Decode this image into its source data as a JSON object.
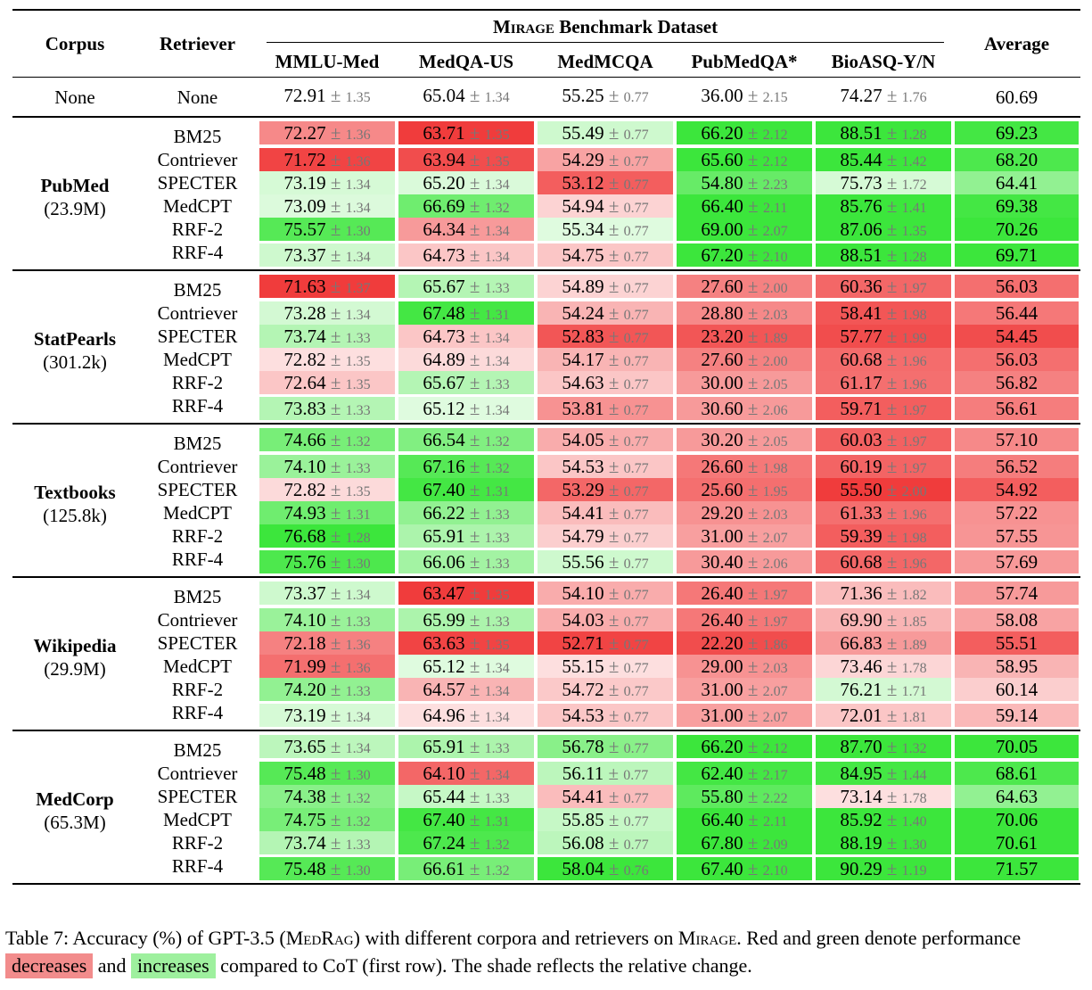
{
  "header": {
    "corpus": "Corpus",
    "retriever": "Retriever",
    "benchmark_prefix": "Mirage",
    "benchmark_suffix": "Benchmark Dataset",
    "datasets": [
      "MMLU-Med",
      "MedQA-US",
      "MedMCQA",
      "PubMedQA*",
      "BioASQ-Y/N"
    ],
    "average": "Average"
  },
  "pm": "±",
  "baseline": {
    "corpus": "None",
    "retriever": "None",
    "cells": [
      [
        "72.91",
        "1.35"
      ],
      [
        "65.04",
        "1.34"
      ],
      [
        "55.25",
        "0.77"
      ],
      [
        "36.00",
        "2.15"
      ],
      [
        "74.27",
        "1.76"
      ]
    ],
    "average": "60.69"
  },
  "groups": [
    {
      "name": "PubMed",
      "size": "(23.9M)",
      "rows": [
        {
          "r": "BM25",
          "c": [
            [
              "72.27",
              "1.36",
              -0.55
            ],
            [
              "63.71",
              "1.35",
              -1
            ],
            [
              "55.49",
              "0.77",
              0.15
            ],
            [
              "66.20",
              "2.12",
              1
            ],
            [
              "88.51",
              "1.28",
              1
            ]
          ],
          "avg": "69.23",
          "ac": 0.95
        },
        {
          "r": "Contriever",
          "c": [
            [
              "71.72",
              "1.36",
              -0.95
            ],
            [
              "63.94",
              "1.35",
              -0.9
            ],
            [
              "54.29",
              "0.77",
              -0.4
            ],
            [
              "65.60",
              "2.12",
              1
            ],
            [
              "85.44",
              "1.42",
              1
            ]
          ],
          "avg": "68.20",
          "ac": 0.9
        },
        {
          "r": "SPECTER",
          "c": [
            [
              "73.19",
              "1.34",
              0.1
            ],
            [
              "65.20",
              "1.34",
              0.08
            ],
            [
              "53.12",
              "0.77",
              -0.8
            ],
            [
              "54.80",
              "2.23",
              0.75
            ],
            [
              "75.73",
              "1.72",
              0.1
            ]
          ],
          "avg": "64.41",
          "ac": 0.5
        },
        {
          "r": "MedCPT",
          "c": [
            [
              "73.09",
              "1.34",
              0.07
            ],
            [
              "66.69",
              "1.32",
              0.7
            ],
            [
              "54.94",
              "0.77",
              -0.12
            ],
            [
              "66.40",
              "2.11",
              1
            ],
            [
              "85.76",
              "1.41",
              1
            ]
          ],
          "avg": "69.38",
          "ac": 0.95
        },
        {
          "r": "RRF-2",
          "c": [
            [
              "75.57",
              "1.30",
              0.85
            ],
            [
              "64.34",
              "1.34",
              -0.45
            ],
            [
              "55.34",
              "0.77",
              0.05
            ],
            [
              "69.00",
              "2.07",
              1
            ],
            [
              "87.06",
              "1.35",
              1
            ]
          ],
          "avg": "70.26",
          "ac": 1
        },
        {
          "r": "RRF-4",
          "c": [
            [
              "73.37",
              "1.34",
              0.15
            ],
            [
              "64.73",
              "1.34",
              -0.2
            ],
            [
              "54.75",
              "0.77",
              -0.2
            ],
            [
              "67.20",
              "2.10",
              1
            ],
            [
              "88.51",
              "1.28",
              1
            ]
          ],
          "avg": "69.71",
          "ac": 1
        }
      ]
    },
    {
      "name": "StatPearls",
      "size": "(301.2k)",
      "rows": [
        {
          "r": "BM25",
          "c": [
            [
              "71.63",
              "1.37",
              -1
            ],
            [
              "65.67",
              "1.33",
              0.3
            ],
            [
              "54.89",
              "0.77",
              -0.12
            ],
            [
              "27.60",
              "2.00",
              -0.6
            ],
            [
              "60.36",
              "1.97",
              -0.75
            ]
          ],
          "avg": "56.03",
          "ac": -0.7
        },
        {
          "r": "Contriever",
          "c": [
            [
              "73.28",
              "1.34",
              0.12
            ],
            [
              "67.48",
              "1.31",
              0.95
            ],
            [
              "54.24",
              "0.77",
              -0.3
            ],
            [
              "28.80",
              "2.03",
              -0.55
            ],
            [
              "58.41",
              "1.98",
              -0.85
            ]
          ],
          "avg": "56.44",
          "ac": -0.65
        },
        {
          "r": "SPECTER",
          "c": [
            [
              "73.74",
              "1.33",
              0.3
            ],
            [
              "64.73",
              "1.34",
              -0.2
            ],
            [
              "52.83",
              "0.77",
              -0.85
            ],
            [
              "23.20",
              "1.89",
              -0.85
            ],
            [
              "57.77",
              "1.99",
              -0.9
            ]
          ],
          "avg": "54.45",
          "ac": -0.9
        },
        {
          "r": "MedCPT",
          "c": [
            [
              "72.82",
              "1.35",
              -0.05
            ],
            [
              "64.89",
              "1.34",
              -0.08
            ],
            [
              "54.17",
              "0.77",
              -0.3
            ],
            [
              "27.60",
              "2.00",
              -0.6
            ],
            [
              "60.68",
              "1.96",
              -0.72
            ]
          ],
          "avg": "56.03",
          "ac": -0.7
        },
        {
          "r": "RRF-2",
          "c": [
            [
              "72.64",
              "1.35",
              -0.2
            ],
            [
              "65.67",
              "1.33",
              0.3
            ],
            [
              "54.63",
              "0.77",
              -0.2
            ],
            [
              "30.00",
              "2.05",
              -0.45
            ],
            [
              "61.17",
              "1.96",
              -0.7
            ]
          ],
          "avg": "56.82",
          "ac": -0.6
        },
        {
          "r": "RRF-4",
          "c": [
            [
              "73.83",
              "1.33",
              0.3
            ],
            [
              "65.12",
              "1.34",
              0.05
            ],
            [
              "53.81",
              "0.77",
              -0.5
            ],
            [
              "30.60",
              "2.06",
              -0.45
            ],
            [
              "59.71",
              "1.97",
              -0.8
            ]
          ],
          "avg": "56.61",
          "ac": -0.62
        }
      ]
    },
    {
      "name": "Textbooks",
      "size": "(125.8k)",
      "rows": [
        {
          "r": "BM25",
          "c": [
            [
              "74.66",
              "1.32",
              0.65
            ],
            [
              "66.54",
              "1.32",
              0.6
            ],
            [
              "54.05",
              "0.77",
              -0.35
            ],
            [
              "30.20",
              "2.05",
              -0.45
            ],
            [
              "60.03",
              "1.97",
              -0.78
            ]
          ],
          "avg": "57.10",
          "ac": -0.55
        },
        {
          "r": "Contriever",
          "c": [
            [
              "74.10",
              "1.33",
              0.45
            ],
            [
              "67.16",
              "1.32",
              0.85
            ],
            [
              "54.53",
              "0.77",
              -0.2
            ],
            [
              "26.60",
              "1.98",
              -0.65
            ],
            [
              "60.19",
              "1.97",
              -0.77
            ]
          ],
          "avg": "56.52",
          "ac": -0.62
        },
        {
          "r": "SPECTER",
          "c": [
            [
              "72.82",
              "1.35",
              -0.08
            ],
            [
              "67.40",
              "1.31",
              0.95
            ],
            [
              "53.29",
              "0.77",
              -0.75
            ],
            [
              "25.60",
              "1.95",
              -0.7
            ],
            [
              "55.50",
              "2.00",
              -1
            ]
          ],
          "avg": "54.92",
          "ac": -0.8
        },
        {
          "r": "MedCPT",
          "c": [
            [
              "74.93",
              "1.31",
              0.7
            ],
            [
              "66.22",
              "1.33",
              0.5
            ],
            [
              "54.41",
              "0.77",
              -0.25
            ],
            [
              "29.20",
              "2.03",
              -0.5
            ],
            [
              "61.33",
              "1.96",
              -0.7
            ]
          ],
          "avg": "57.22",
          "ac": -0.5
        },
        {
          "r": "RRF-2",
          "c": [
            [
              "76.68",
              "1.28",
              1
            ],
            [
              "65.91",
              "1.33",
              0.35
            ],
            [
              "54.79",
              "0.77",
              -0.15
            ],
            [
              "31.00",
              "2.07",
              -0.42
            ],
            [
              "59.39",
              "1.98",
              -0.8
            ]
          ],
          "avg": "57.55",
          "ac": -0.48
        },
        {
          "r": "RRF-4",
          "c": [
            [
              "75.76",
              "1.30",
              0.9
            ],
            [
              "66.06",
              "1.33",
              0.4
            ],
            [
              "55.56",
              "0.77",
              0.15
            ],
            [
              "30.40",
              "2.06",
              -0.45
            ],
            [
              "60.68",
              "1.96",
              -0.75
            ]
          ],
          "avg": "57.69",
          "ac": -0.46
        }
      ]
    },
    {
      "name": "Wikipedia",
      "size": "(29.9M)",
      "rows": [
        {
          "r": "BM25",
          "c": [
            [
              "73.37",
              "1.34",
              0.15
            ],
            [
              "63.47",
              "1.35",
              -1
            ],
            [
              "54.10",
              "0.77",
              -0.35
            ],
            [
              "26.40",
              "1.97",
              -0.65
            ],
            [
              "71.36",
              "1.82",
              -0.25
            ]
          ],
          "avg": "57.74",
          "ac": -0.45
        },
        {
          "r": "Contriever",
          "c": [
            [
              "74.10",
              "1.33",
              0.45
            ],
            [
              "65.99",
              "1.33",
              0.35
            ],
            [
              "54.03",
              "0.77",
              -0.35
            ],
            [
              "26.40",
              "1.97",
              -0.65
            ],
            [
              "69.90",
              "1.85",
              -0.3
            ]
          ],
          "avg": "58.08",
          "ac": -0.4
        },
        {
          "r": "SPECTER",
          "c": [
            [
              "72.18",
              "1.36",
              -0.6
            ],
            [
              "63.63",
              "1.35",
              -0.95
            ],
            [
              "52.71",
              "0.77",
              -0.95
            ],
            [
              "22.20",
              "1.86",
              -0.9
            ],
            [
              "66.83",
              "1.89",
              -0.45
            ]
          ],
          "avg": "55.51",
          "ac": -0.8
        },
        {
          "r": "MedCPT",
          "c": [
            [
              "71.99",
              "1.36",
              -0.7
            ],
            [
              "65.12",
              "1.34",
              0.05
            ],
            [
              "55.15",
              "0.77",
              -0.05
            ],
            [
              "29.00",
              "2.03",
              -0.5
            ],
            [
              "73.46",
              "1.78",
              -0.1
            ]
          ],
          "avg": "58.95",
          "ac": -0.3
        },
        {
          "r": "RRF-2",
          "c": [
            [
              "74.20",
              "1.33",
              0.5
            ],
            [
              "64.57",
              "1.34",
              -0.3
            ],
            [
              "54.72",
              "0.77",
              -0.18
            ],
            [
              "31.00",
              "2.07",
              -0.42
            ],
            [
              "76.21",
              "1.71",
              0.12
            ]
          ],
          "avg": "60.14",
          "ac": -0.15
        },
        {
          "r": "RRF-4",
          "c": [
            [
              "73.19",
              "1.34",
              0.1
            ],
            [
              "64.96",
              "1.34",
              -0.05
            ],
            [
              "54.53",
              "0.77",
              -0.2
            ],
            [
              "31.00",
              "2.07",
              -0.42
            ],
            [
              "72.01",
              "1.81",
              -0.2
            ]
          ],
          "avg": "59.14",
          "ac": -0.28
        }
      ]
    },
    {
      "name": "MedCorp",
      "size": "(65.3M)",
      "rows": [
        {
          "r": "BM25",
          "c": [
            [
              "73.65",
              "1.34",
              0.25
            ],
            [
              "65.91",
              "1.33",
              0.35
            ],
            [
              "56.78",
              "0.77",
              0.55
            ],
            [
              "66.20",
              "2.12",
              1
            ],
            [
              "87.70",
              "1.32",
              1
            ]
          ],
          "avg": "70.05",
          "ac": 1
        },
        {
          "r": "Contriever",
          "c": [
            [
              "75.48",
              "1.30",
              0.85
            ],
            [
              "64.10",
              "1.34",
              -0.75
            ],
            [
              "56.11",
              "0.77",
              0.25
            ],
            [
              "62.40",
              "2.17",
              0.95
            ],
            [
              "84.95",
              "1.44",
              0.95
            ]
          ],
          "avg": "68.61",
          "ac": 0.9
        },
        {
          "r": "SPECTER",
          "c": [
            [
              "74.38",
              "1.32",
              0.55
            ],
            [
              "65.44",
              "1.33",
              0.2
            ],
            [
              "54.41",
              "0.77",
              -0.25
            ],
            [
              "55.80",
              "2.22",
              0.8
            ],
            [
              "73.14",
              "1.78",
              -0.05
            ]
          ],
          "avg": "64.63",
          "ac": 0.5
        },
        {
          "r": "MedCPT",
          "c": [
            [
              "74.75",
              "1.32",
              0.65
            ],
            [
              "67.40",
              "1.31",
              0.95
            ],
            [
              "55.85",
              "0.77",
              0.2
            ],
            [
              "66.40",
              "2.11",
              1
            ],
            [
              "85.92",
              "1.40",
              1
            ]
          ],
          "avg": "70.06",
          "ac": 1
        },
        {
          "r": "RRF-2",
          "c": [
            [
              "73.74",
              "1.33",
              0.3
            ],
            [
              "67.24",
              "1.32",
              0.9
            ],
            [
              "56.08",
              "0.77",
              0.25
            ],
            [
              "67.80",
              "2.09",
              1
            ],
            [
              "88.19",
              "1.30",
              1
            ]
          ],
          "avg": "70.61",
          "ac": 1
        },
        {
          "r": "RRF-4",
          "c": [
            [
              "75.48",
              "1.30",
              0.85
            ],
            [
              "66.61",
              "1.32",
              0.65
            ],
            [
              "58.04",
              "0.76",
              1
            ],
            [
              "67.40",
              "2.10",
              1
            ],
            [
              "90.29",
              "1.19",
              1
            ]
          ],
          "avg": "71.57",
          "ac": 1
        }
      ]
    }
  ],
  "caption": {
    "part1": "Table 7: Accuracy (%) of GPT-3.5 (",
    "medrag": "MedRag",
    "part2": ") with different corpora and retrievers on ",
    "mirage": "Mirage",
    "part3": ". Red and green denote performance ",
    "decreases": "decreases",
    "and": " and ",
    "increases": "increases",
    "part4": " compared to CoT (first row). The shade reflects the relative change."
  },
  "colors": {
    "red": "#f03c3c",
    "green": "#3ce63c"
  }
}
